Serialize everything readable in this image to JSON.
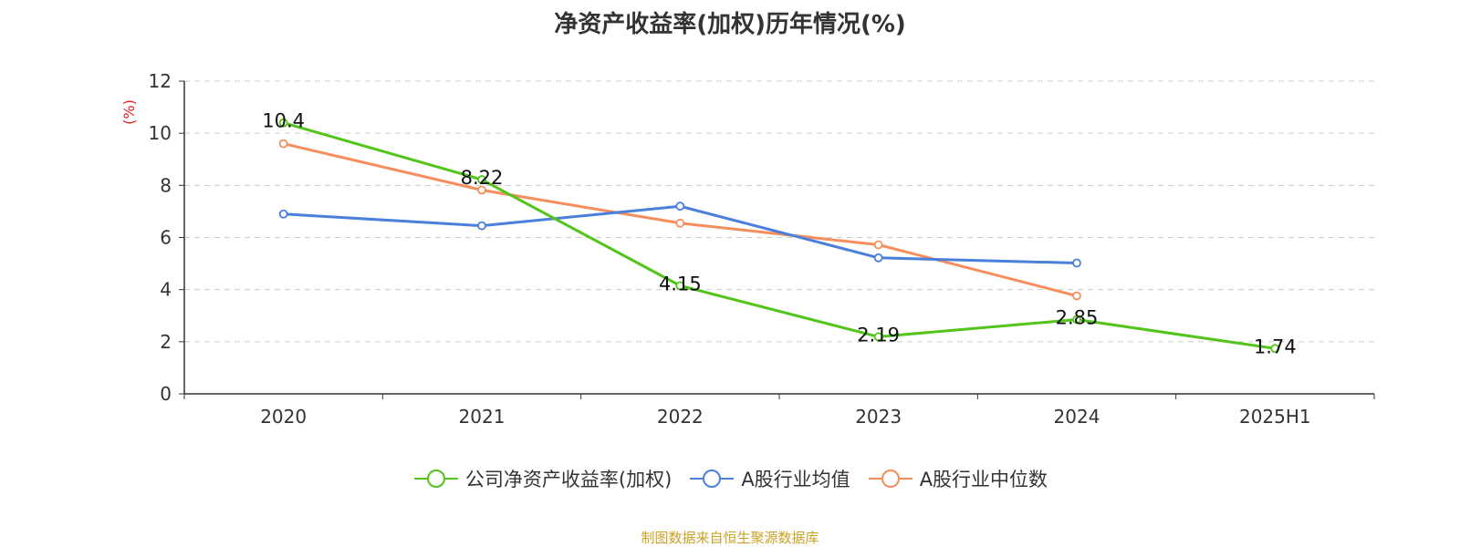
{
  "chart_data": {
    "type": "line",
    "title": "净资产收益率(加权)历年情况(%)",
    "ylabel": "(%)",
    "xlabel": "",
    "categories": [
      "2020",
      "2021",
      "2022",
      "2023",
      "2024",
      "2025H1"
    ],
    "ylim": [
      0,
      12
    ],
    "yticks": [
      0,
      2,
      4,
      6,
      8,
      10,
      12
    ],
    "grid": true,
    "legend_position": "bottom",
    "series": [
      {
        "name": "公司净资产收益率(加权)",
        "color": "#52c41a",
        "values": [
          10.4,
          8.22,
          4.15,
          2.19,
          2.85,
          1.74
        ],
        "labels": [
          "10.4",
          "8.22",
          "4.15",
          "2.19",
          "2.85",
          "1.74"
        ]
      },
      {
        "name": "A股行业均值",
        "color": "#4a7fdc",
        "values": [
          6.9,
          6.45,
          7.2,
          5.22,
          5.02,
          null
        ]
      },
      {
        "name": "A股行业中位数",
        "color": "#f58d5c",
        "values": [
          9.6,
          7.82,
          6.55,
          5.72,
          3.76,
          null
        ]
      }
    ],
    "source": "制图数据来自恒生聚源数据库"
  }
}
